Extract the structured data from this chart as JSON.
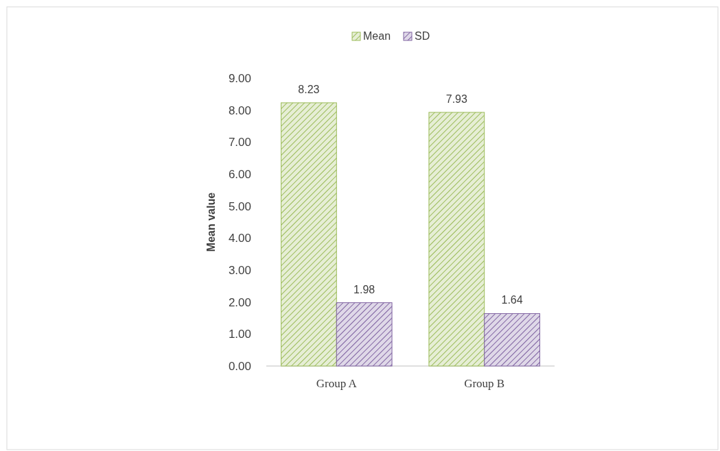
{
  "chart_data": {
    "type": "bar",
    "categories": [
      "Group A",
      "Group B"
    ],
    "series": [
      {
        "name": "Mean",
        "color": "#9bbb59",
        "values": [
          8.23,
          7.93
        ]
      },
      {
        "name": "SD",
        "color": "#8064a2",
        "values": [
          1.98,
          1.64
        ]
      }
    ],
    "ylabel": "Mean value",
    "ylim": [
      0,
      9
    ],
    "yticks": [
      {
        "value": 0,
        "label": "0.00"
      },
      {
        "value": 1,
        "label": "1.00"
      },
      {
        "value": 2,
        "label": "2.00"
      },
      {
        "value": 3,
        "label": "3.00"
      },
      {
        "value": 4,
        "label": "4.00"
      },
      {
        "value": 5,
        "label": "5.00"
      },
      {
        "value": 6,
        "label": "6.00"
      },
      {
        "value": 7,
        "label": "7.00"
      },
      {
        "value": 8,
        "label": "8.00"
      },
      {
        "value": 9,
        "label": "9.00"
      }
    ],
    "data_labels": true,
    "legend": "top",
    "grid": false
  }
}
